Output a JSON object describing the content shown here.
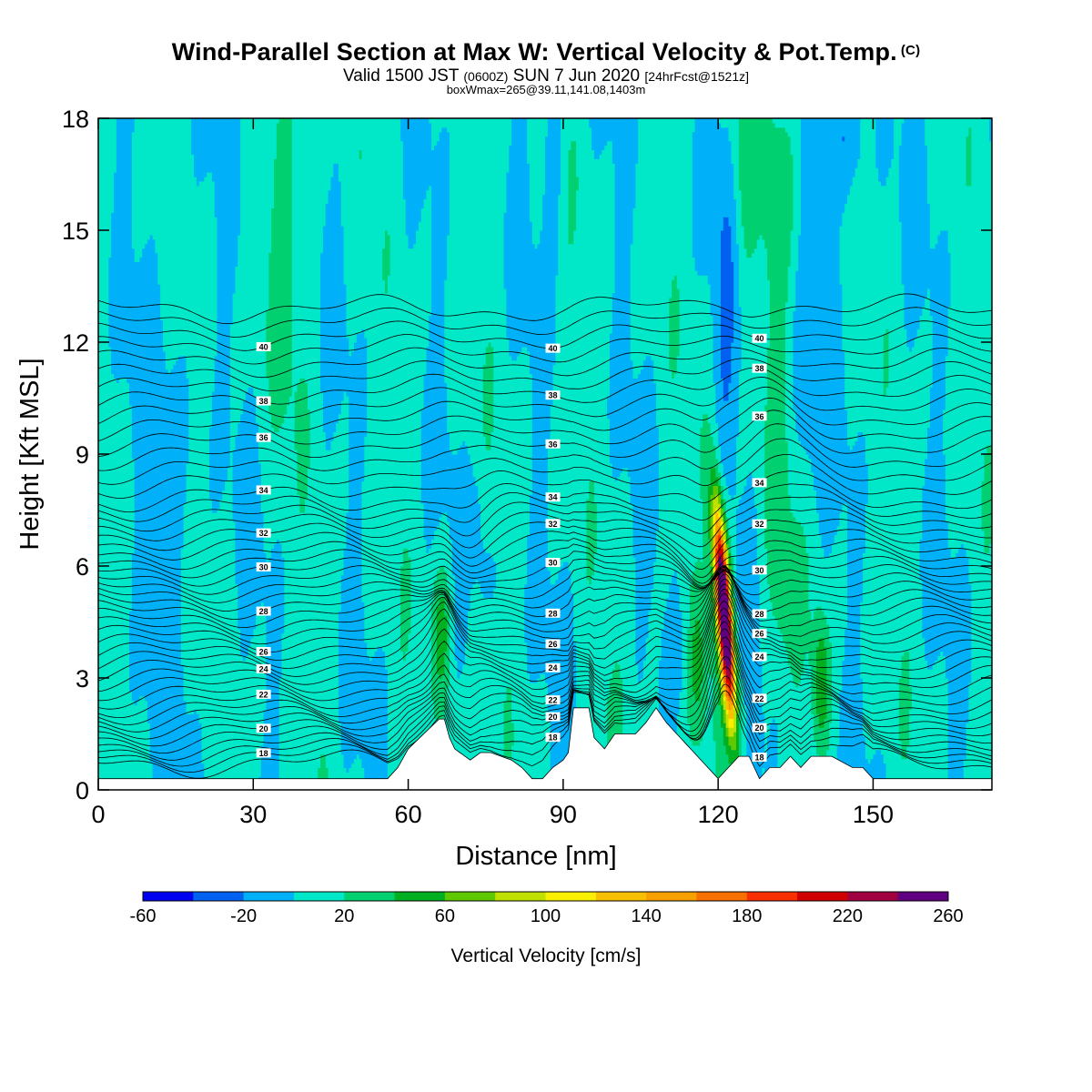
{
  "header": {
    "title": "Wind-Parallel Section at Max W: Vertical Velocity & Pot.Temp.",
    "title_unit": "(C)",
    "valid_main": "Valid 1500 JST",
    "valid_utc": "(0600Z)",
    "valid_date": "SUN 7 Jun 2020",
    "valid_fcst": "[24hrFcst@1521z]",
    "box_info": "boxWmax=265@39.11,141.08,1403m"
  },
  "chart_data": {
    "type": "heatmap",
    "xlabel": "Distance [nm]",
    "ylabel": "Height [Kft MSL]",
    "xlim": [
      0,
      173
    ],
    "ylim": [
      0,
      18
    ],
    "x_ticks": [
      "0",
      "30",
      "60",
      "90",
      "120",
      "150"
    ],
    "y_ticks": [
      "0",
      "3",
      "6",
      "9",
      "12",
      "15",
      "18"
    ],
    "colorbar": {
      "title": "Vertical Velocity [cm/s]",
      "tick_labels": [
        "-60",
        "-20",
        "20",
        "60",
        "100",
        "140",
        "180",
        "220",
        "260"
      ],
      "levels": [
        -60,
        -40,
        -20,
        0,
        20,
        40,
        60,
        80,
        100,
        120,
        140,
        160,
        180,
        200,
        220,
        240,
        260
      ],
      "colors": [
        "#0000f0",
        "#0060f0",
        "#00b0f8",
        "#00e8c8",
        "#00d070",
        "#00b020",
        "#60c800",
        "#c0e000",
        "#f8f000",
        "#f8c000",
        "#f8a000",
        "#f87000",
        "#f83000",
        "#d00000",
        "#a00040",
        "#600080"
      ]
    },
    "theta_contour_labels": [
      "18",
      "20",
      "22",
      "24",
      "26",
      "28",
      "30",
      "32",
      "34",
      "36",
      "38",
      "40"
    ],
    "max_vertical_velocity_cm_s": 265,
    "updraft_core_distance_nm": 120.5,
    "terrain_profile": {
      "x": [
        0,
        56,
        58,
        60,
        66,
        67,
        68,
        69,
        70,
        72,
        74,
        76,
        80,
        82,
        84,
        86,
        88,
        90,
        91,
        92,
        95,
        96,
        98,
        100,
        104,
        106,
        108,
        110,
        112,
        114,
        116,
        118,
        120,
        122,
        124,
        126,
        128,
        130,
        132,
        134,
        136,
        138,
        140,
        142,
        146,
        148,
        150,
        173
      ],
      "y": [
        0.3,
        0.3,
        0.6,
        1.1,
        1.9,
        1.9,
        1.4,
        1.1,
        1.0,
        0.8,
        1.0,
        1.0,
        0.8,
        0.6,
        0.3,
        0.3,
        0.6,
        0.8,
        1.0,
        2.2,
        2.2,
        1.4,
        1.1,
        1.5,
        1.5,
        1.8,
        2.2,
        1.8,
        1.5,
        1.2,
        0.9,
        0.6,
        0.3,
        0.6,
        0.9,
        0.9,
        0.3,
        0.6,
        0.6,
        0.9,
        0.6,
        0.9,
        0.9,
        0.9,
        0.6,
        0.6,
        0.3,
        0.3
      ]
    }
  }
}
